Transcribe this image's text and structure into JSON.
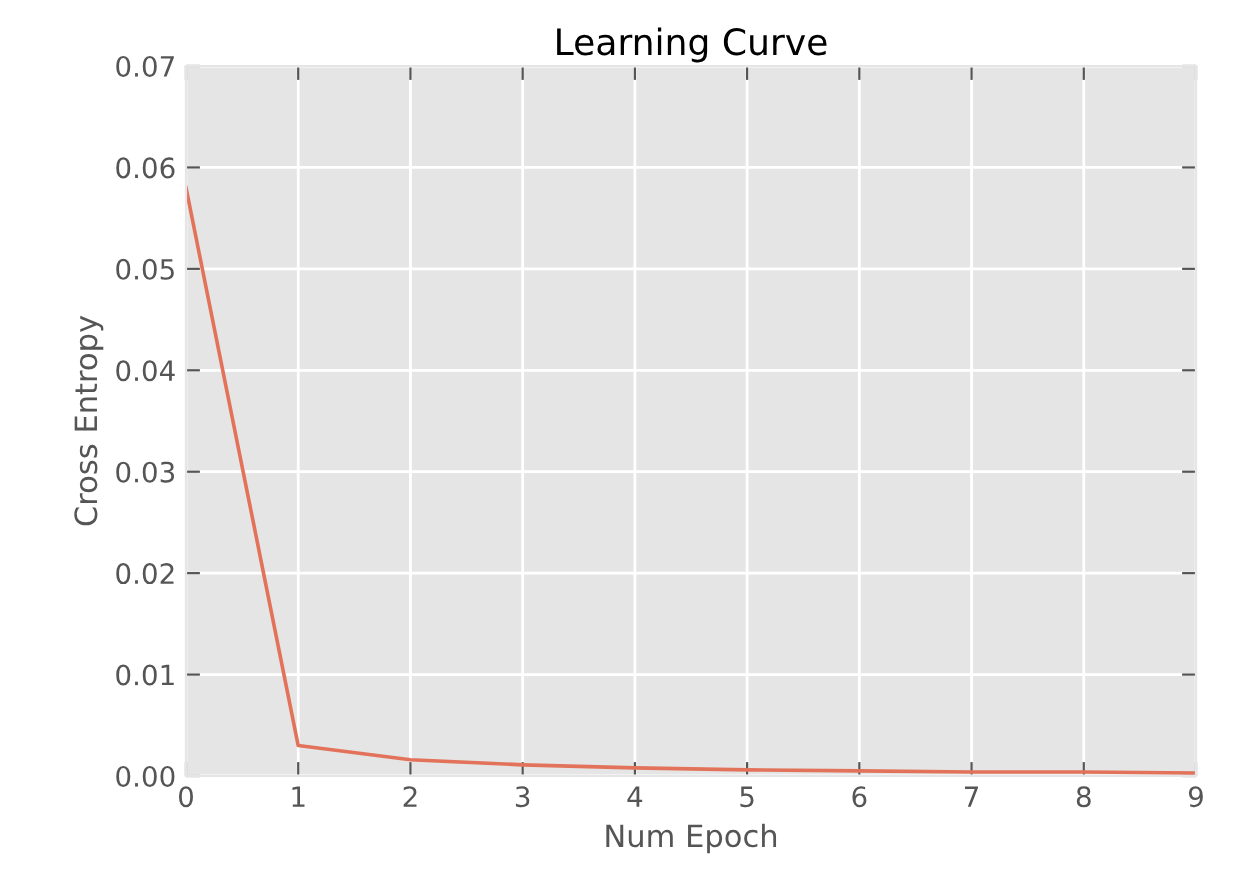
{
  "chart_data": {
    "type": "line",
    "title": "Learning Curve",
    "xlabel": "Num Epoch",
    "ylabel": "Cross Entropy",
    "x": [
      0,
      1,
      2,
      3,
      4,
      5,
      6,
      7,
      8,
      9
    ],
    "series": [
      {
        "color": "#e2735a",
        "values": [
          0.058,
          0.003,
          0.0016,
          0.0011,
          0.0008,
          0.0006,
          0.0005,
          0.0004,
          0.0004,
          0.0003
        ]
      }
    ],
    "xlim": [
      0,
      9
    ],
    "xticks": [
      0,
      1,
      2,
      3,
      4,
      5,
      6,
      7,
      8,
      9
    ],
    "ylim": [
      0,
      0.07
    ],
    "yticks": [
      {
        "value": 0,
        "label": "0.00"
      },
      {
        "value": 0.01,
        "label": "0.01"
      },
      {
        "value": 0.02,
        "label": "0.02"
      },
      {
        "value": 0.03,
        "label": "0.03"
      },
      {
        "value": 0.04,
        "label": "0.04"
      },
      {
        "value": 0.05,
        "label": "0.05"
      },
      {
        "value": 0.06,
        "label": "0.06"
      },
      {
        "value": 0.07,
        "label": "0.07"
      }
    ],
    "grid": true,
    "marker": "none",
    "line_style": "solid"
  }
}
